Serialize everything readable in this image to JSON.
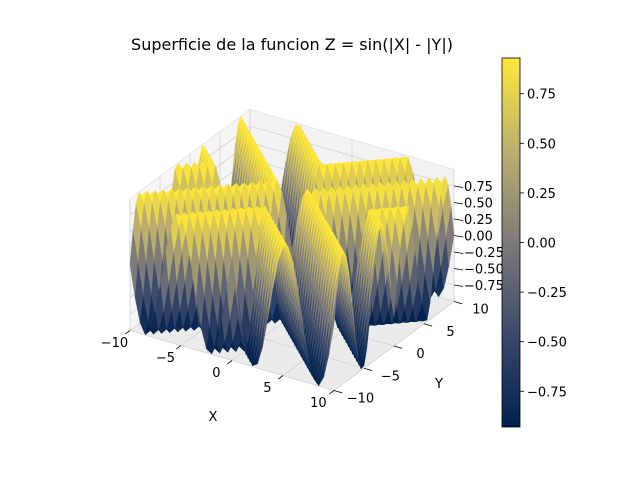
{
  "chart_data": {
    "type": "surface",
    "title": "Superficie de la funcion Z = sin(|X| - |Y|)",
    "function": "Z = sin(|X| - |Y|)",
    "xlabel": "X",
    "ylabel": "Y",
    "zlabel": "",
    "xlim": [
      -10,
      10
    ],
    "ylim": [
      -10,
      10
    ],
    "zlim": [
      -1,
      1
    ],
    "x_ticks": [
      "−10",
      "−5",
      "0",
      "5",
      "10"
    ],
    "y_ticks": [
      "−10",
      "−5",
      "0",
      "5",
      "10"
    ],
    "z_ticks": [
      "0.75",
      "0.50",
      "0.25",
      "0.00",
      "−0.25",
      "−0.50",
      "−0.75"
    ],
    "colormap": "cividis",
    "colorbar": {
      "min": -0.93,
      "max": 0.93,
      "ticks": [
        "0.75",
        "0.50",
        "0.25",
        "0.00",
        "−0.25",
        "−0.50",
        "−0.75"
      ],
      "tick_values": [
        0.75,
        0.5,
        0.25,
        0.0,
        -0.25,
        -0.5,
        -0.75
      ]
    },
    "grid": true,
    "colors": {
      "low": "#00224e",
      "mid": "#7c7b78",
      "high": "#fee838",
      "pane": "#f2f2f2",
      "pane_edge": "#e6e6e6"
    }
  }
}
